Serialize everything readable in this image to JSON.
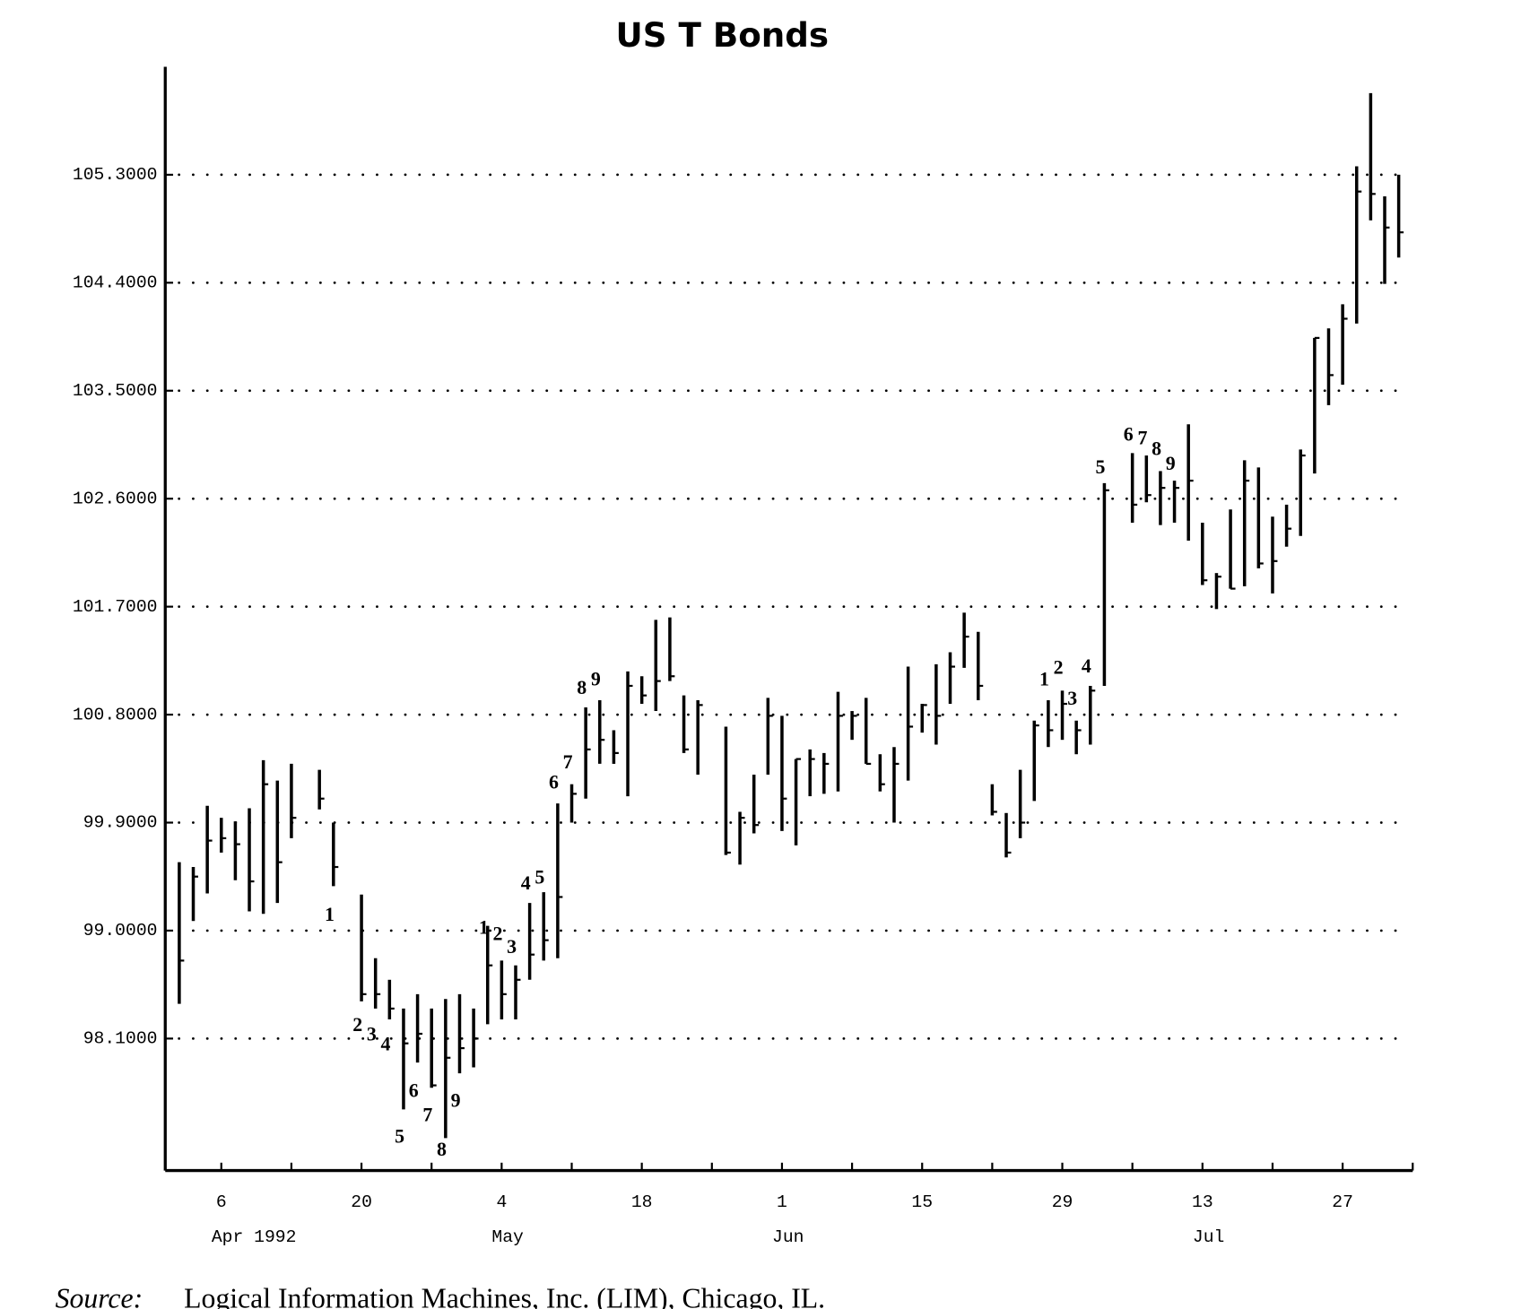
{
  "chart_data": {
    "type": "ohlc",
    "title": "US T Bonds",
    "source_label": "Source:",
    "source": "Logical Information Machines, Inc. (LIM), Chicago, IL.",
    "color": "#000000",
    "grid": true,
    "x": [
      "1992-04-01",
      "1992-04-02",
      "1992-04-03",
      "1992-04-06",
      "1992-04-07",
      "1992-04-08",
      "1992-04-09",
      "1992-04-10",
      "1992-04-13",
      "1992-04-15",
      "1992-04-16",
      "1992-04-20",
      "1992-04-21",
      "1992-04-22",
      "1992-04-23",
      "1992-04-24",
      "1992-04-27",
      "1992-04-28",
      "1992-04-29",
      "1992-04-30",
      "1992-05-01",
      "1992-05-04",
      "1992-05-05",
      "1992-05-06",
      "1992-05-07",
      "1992-05-08",
      "1992-05-11",
      "1992-05-12",
      "1992-05-13",
      "1992-05-14",
      "1992-05-15",
      "1992-05-18",
      "1992-05-19",
      "1992-05-20",
      "1992-05-21",
      "1992-05-22",
      "1992-05-26",
      "1992-05-27",
      "1992-05-28",
      "1992-05-29",
      "1992-06-01",
      "1992-06-02",
      "1992-06-03",
      "1992-06-04",
      "1992-06-05",
      "1992-06-08",
      "1992-06-09",
      "1992-06-10",
      "1992-06-11",
      "1992-06-12",
      "1992-06-15",
      "1992-06-16",
      "1992-06-17",
      "1992-06-18",
      "1992-06-19",
      "1992-06-22",
      "1992-06-23",
      "1992-06-24",
      "1992-06-25",
      "1992-06-26",
      "1992-06-29",
      "1992-06-30",
      "1992-07-01",
      "1992-07-02",
      "1992-07-06",
      "1992-07-07",
      "1992-07-08",
      "1992-07-09",
      "1992-07-10",
      "1992-07-13",
      "1992-07-14",
      "1992-07-15",
      "1992-07-16",
      "1992-07-17",
      "1992-07-20",
      "1992-07-21",
      "1992-07-22",
      "1992-07-23",
      "1992-07-24",
      "1992-07-27",
      "1992-07-28",
      "1992-07-29",
      "1992-07-30",
      "1992-07-31"
    ],
    "high": [
      99.57,
      99.53,
      100.04,
      99.94,
      99.91,
      100.02,
      100.42,
      100.25,
      100.39,
      100.34,
      99.9,
      99.3,
      98.77,
      98.59,
      98.35,
      98.47,
      98.35,
      98.43,
      98.47,
      98.35,
      99.04,
      98.75,
      98.71,
      99.23,
      99.32,
      100.06,
      100.22,
      100.86,
      100.92,
      100.67,
      101.16,
      101.12,
      101.59,
      101.61,
      100.96,
      100.92,
      100.7,
      99.99,
      100.3,
      100.94,
      100.79,
      100.43,
      100.51,
      100.48,
      100.99,
      100.83,
      100.94,
      100.47,
      100.53,
      101.2,
      100.89,
      101.22,
      101.32,
      101.65,
      101.49,
      100.22,
      99.98,
      100.34,
      100.75,
      100.92,
      101.0,
      100.75,
      101.04,
      102.73,
      102.98,
      102.96,
      102.83,
      102.75,
      103.22,
      102.4,
      101.98,
      102.51,
      102.92,
      102.86,
      102.45,
      102.55,
      103.01,
      103.94,
      104.02,
      104.22,
      105.37,
      105.98,
      105.12,
      105.3
    ],
    "low": [
      98.39,
      99.08,
      99.31,
      99.65,
      99.42,
      99.16,
      99.14,
      99.23,
      99.77,
      100.01,
      99.37,
      98.41,
      98.35,
      98.26,
      97.51,
      97.9,
      97.69,
      97.27,
      97.81,
      97.86,
      98.22,
      98.26,
      98.26,
      98.59,
      98.75,
      98.77,
      99.9,
      100.1,
      100.39,
      100.39,
      100.12,
      100.89,
      100.83,
      101.08,
      100.48,
      100.3,
      99.63,
      99.55,
      99.81,
      100.3,
      99.83,
      99.71,
      100.12,
      100.14,
      100.16,
      100.59,
      100.39,
      100.16,
      99.9,
      100.25,
      100.65,
      100.55,
      100.89,
      101.19,
      100.92,
      99.96,
      99.61,
      99.77,
      100.08,
      100.53,
      100.59,
      100.47,
      100.55,
      101.04,
      102.4,
      102.57,
      102.38,
      102.4,
      102.25,
      101.88,
      101.68,
      101.85,
      101.87,
      102.02,
      101.81,
      102.2,
      102.29,
      102.81,
      103.38,
      103.55,
      104.06,
      104.92,
      104.39,
      104.61
    ],
    "close": [
      98.75,
      99.45,
      99.75,
      99.77,
      99.72,
      99.41,
      100.22,
      99.57,
      99.94,
      100.1,
      99.53,
      98.47,
      98.47,
      98.35,
      98.06,
      98.14,
      97.71,
      97.94,
      98.02,
      98.1,
      98.71,
      98.47,
      98.59,
      98.8,
      98.92,
      99.28,
      100.14,
      100.51,
      100.59,
      100.48,
      101.04,
      100.96,
      101.08,
      101.12,
      100.51,
      100.88,
      99.65,
      99.94,
      99.88,
      100.79,
      100.1,
      100.43,
      100.43,
      100.39,
      100.79,
      100.79,
      100.39,
      100.22,
      100.39,
      100.7,
      100.88,
      100.79,
      101.2,
      101.45,
      101.04,
      99.99,
      99.65,
      99.9,
      100.71,
      100.67,
      100.89,
      100.67,
      101.0,
      102.67,
      102.55,
      102.63,
      102.69,
      102.69,
      102.75,
      101.92,
      101.95,
      101.85,
      102.75,
      102.06,
      102.08,
      102.35,
      102.96,
      103.94,
      103.63,
      104.1,
      105.16,
      105.14,
      104.86,
      104.82
    ],
    "xlim": [
      "1992-03-31",
      "1992-08-03"
    ],
    "ylim": [
      97.0,
      106.2
    ],
    "yticks": [
      {
        "value": 98.1,
        "label": "98.1000"
      },
      {
        "value": 99.0,
        "label": "99.0000"
      },
      {
        "value": 99.9,
        "label": "99.9000"
      },
      {
        "value": 100.8,
        "label": "100.8000"
      },
      {
        "value": 101.7,
        "label": "101.7000"
      },
      {
        "value": 102.6,
        "label": "102.6000"
      },
      {
        "value": 103.5,
        "label": "103.5000"
      },
      {
        "value": 104.4,
        "label": "104.4000"
      },
      {
        "value": 105.3,
        "label": "105.3000"
      }
    ],
    "xticks": [
      {
        "value": "1992-04-06",
        "label": "6"
      },
      {
        "value": "1992-04-13",
        "label": null
      },
      {
        "value": "1992-04-20",
        "label": "20"
      },
      {
        "value": "1992-04-27",
        "label": null
      },
      {
        "value": "1992-05-04",
        "label": "4"
      },
      {
        "value": "1992-05-11",
        "label": null
      },
      {
        "value": "1992-05-18",
        "label": "18"
      },
      {
        "value": "1992-05-25",
        "label": null
      },
      {
        "value": "1992-06-01",
        "label": "1"
      },
      {
        "value": "1992-06-08",
        "label": null
      },
      {
        "value": "1992-06-15",
        "label": "15"
      },
      {
        "value": "1992-06-22",
        "label": null
      },
      {
        "value": "1992-06-29",
        "label": "29"
      },
      {
        "value": "1992-07-06",
        "label": null
      },
      {
        "value": "1992-07-13",
        "label": "13"
      },
      {
        "value": "1992-07-20",
        "label": null
      },
      {
        "value": "1992-07-27",
        "label": "27"
      },
      {
        "value": "1992-08-03",
        "label": null
      }
    ],
    "month_labels": [
      {
        "value": "1992-04-06",
        "label": "Apr 1992"
      },
      {
        "value": "1992-05-04",
        "label": "May"
      },
      {
        "value": "1992-06-01",
        "label": "Jun"
      },
      {
        "value": "1992-07-13",
        "label": "Jul"
      }
    ],
    "annotations": [
      {
        "text": "1",
        "x": "1992-04-16",
        "y": 99.12
      },
      {
        "text": "2",
        "x": "1992-04-20",
        "y": 98.2
      },
      {
        "text": "3",
        "x": "1992-04-21",
        "y": 98.12
      },
      {
        "text": "4",
        "x": "1992-04-22",
        "y": 98.04
      },
      {
        "text": "5",
        "x": "1992-04-23",
        "y": 97.27
      },
      {
        "text": "6",
        "x": "1992-04-24",
        "y": 97.65
      },
      {
        "text": "7",
        "x": "1992-04-27",
        "y": 97.45
      },
      {
        "text": "8",
        "x": "1992-04-28",
        "y": 97.16
      },
      {
        "text": "9",
        "x": "1992-04-29",
        "y": 97.57
      },
      {
        "text": "1",
        "x": "1992-05-01",
        "y": 99.01
      },
      {
        "text": "2",
        "x": "1992-05-04",
        "y": 98.96
      },
      {
        "text": "3",
        "x": "1992-05-05",
        "y": 98.85
      },
      {
        "text": "4",
        "x": "1992-05-06",
        "y": 99.38
      },
      {
        "text": "5",
        "x": "1992-05-07",
        "y": 99.43
      },
      {
        "text": "6",
        "x": "1992-05-08",
        "y": 100.22
      },
      {
        "text": "7",
        "x": "1992-05-11",
        "y": 100.39
      },
      {
        "text": "8",
        "x": "1992-05-12",
        "y": 101.01
      },
      {
        "text": "9",
        "x": "1992-05-13",
        "y": 101.08
      },
      {
        "text": "1",
        "x": "1992-06-26",
        "y": 101.08
      },
      {
        "text": "2",
        "x": "1992-06-29",
        "y": 101.18
      },
      {
        "text": "3",
        "x": "1992-06-30",
        "y": 100.92
      },
      {
        "text": "4",
        "x": "1992-07-01",
        "y": 101.19
      },
      {
        "text": "5",
        "x": "1992-07-02",
        "y": 102.85
      },
      {
        "text": "6",
        "x": "1992-07-06",
        "y": 103.12
      },
      {
        "text": "7",
        "x": "1992-07-07",
        "y": 103.09
      },
      {
        "text": "8",
        "x": "1992-07-08",
        "y": 103.0
      },
      {
        "text": "9",
        "x": "1992-07-09",
        "y": 102.88
      }
    ]
  }
}
